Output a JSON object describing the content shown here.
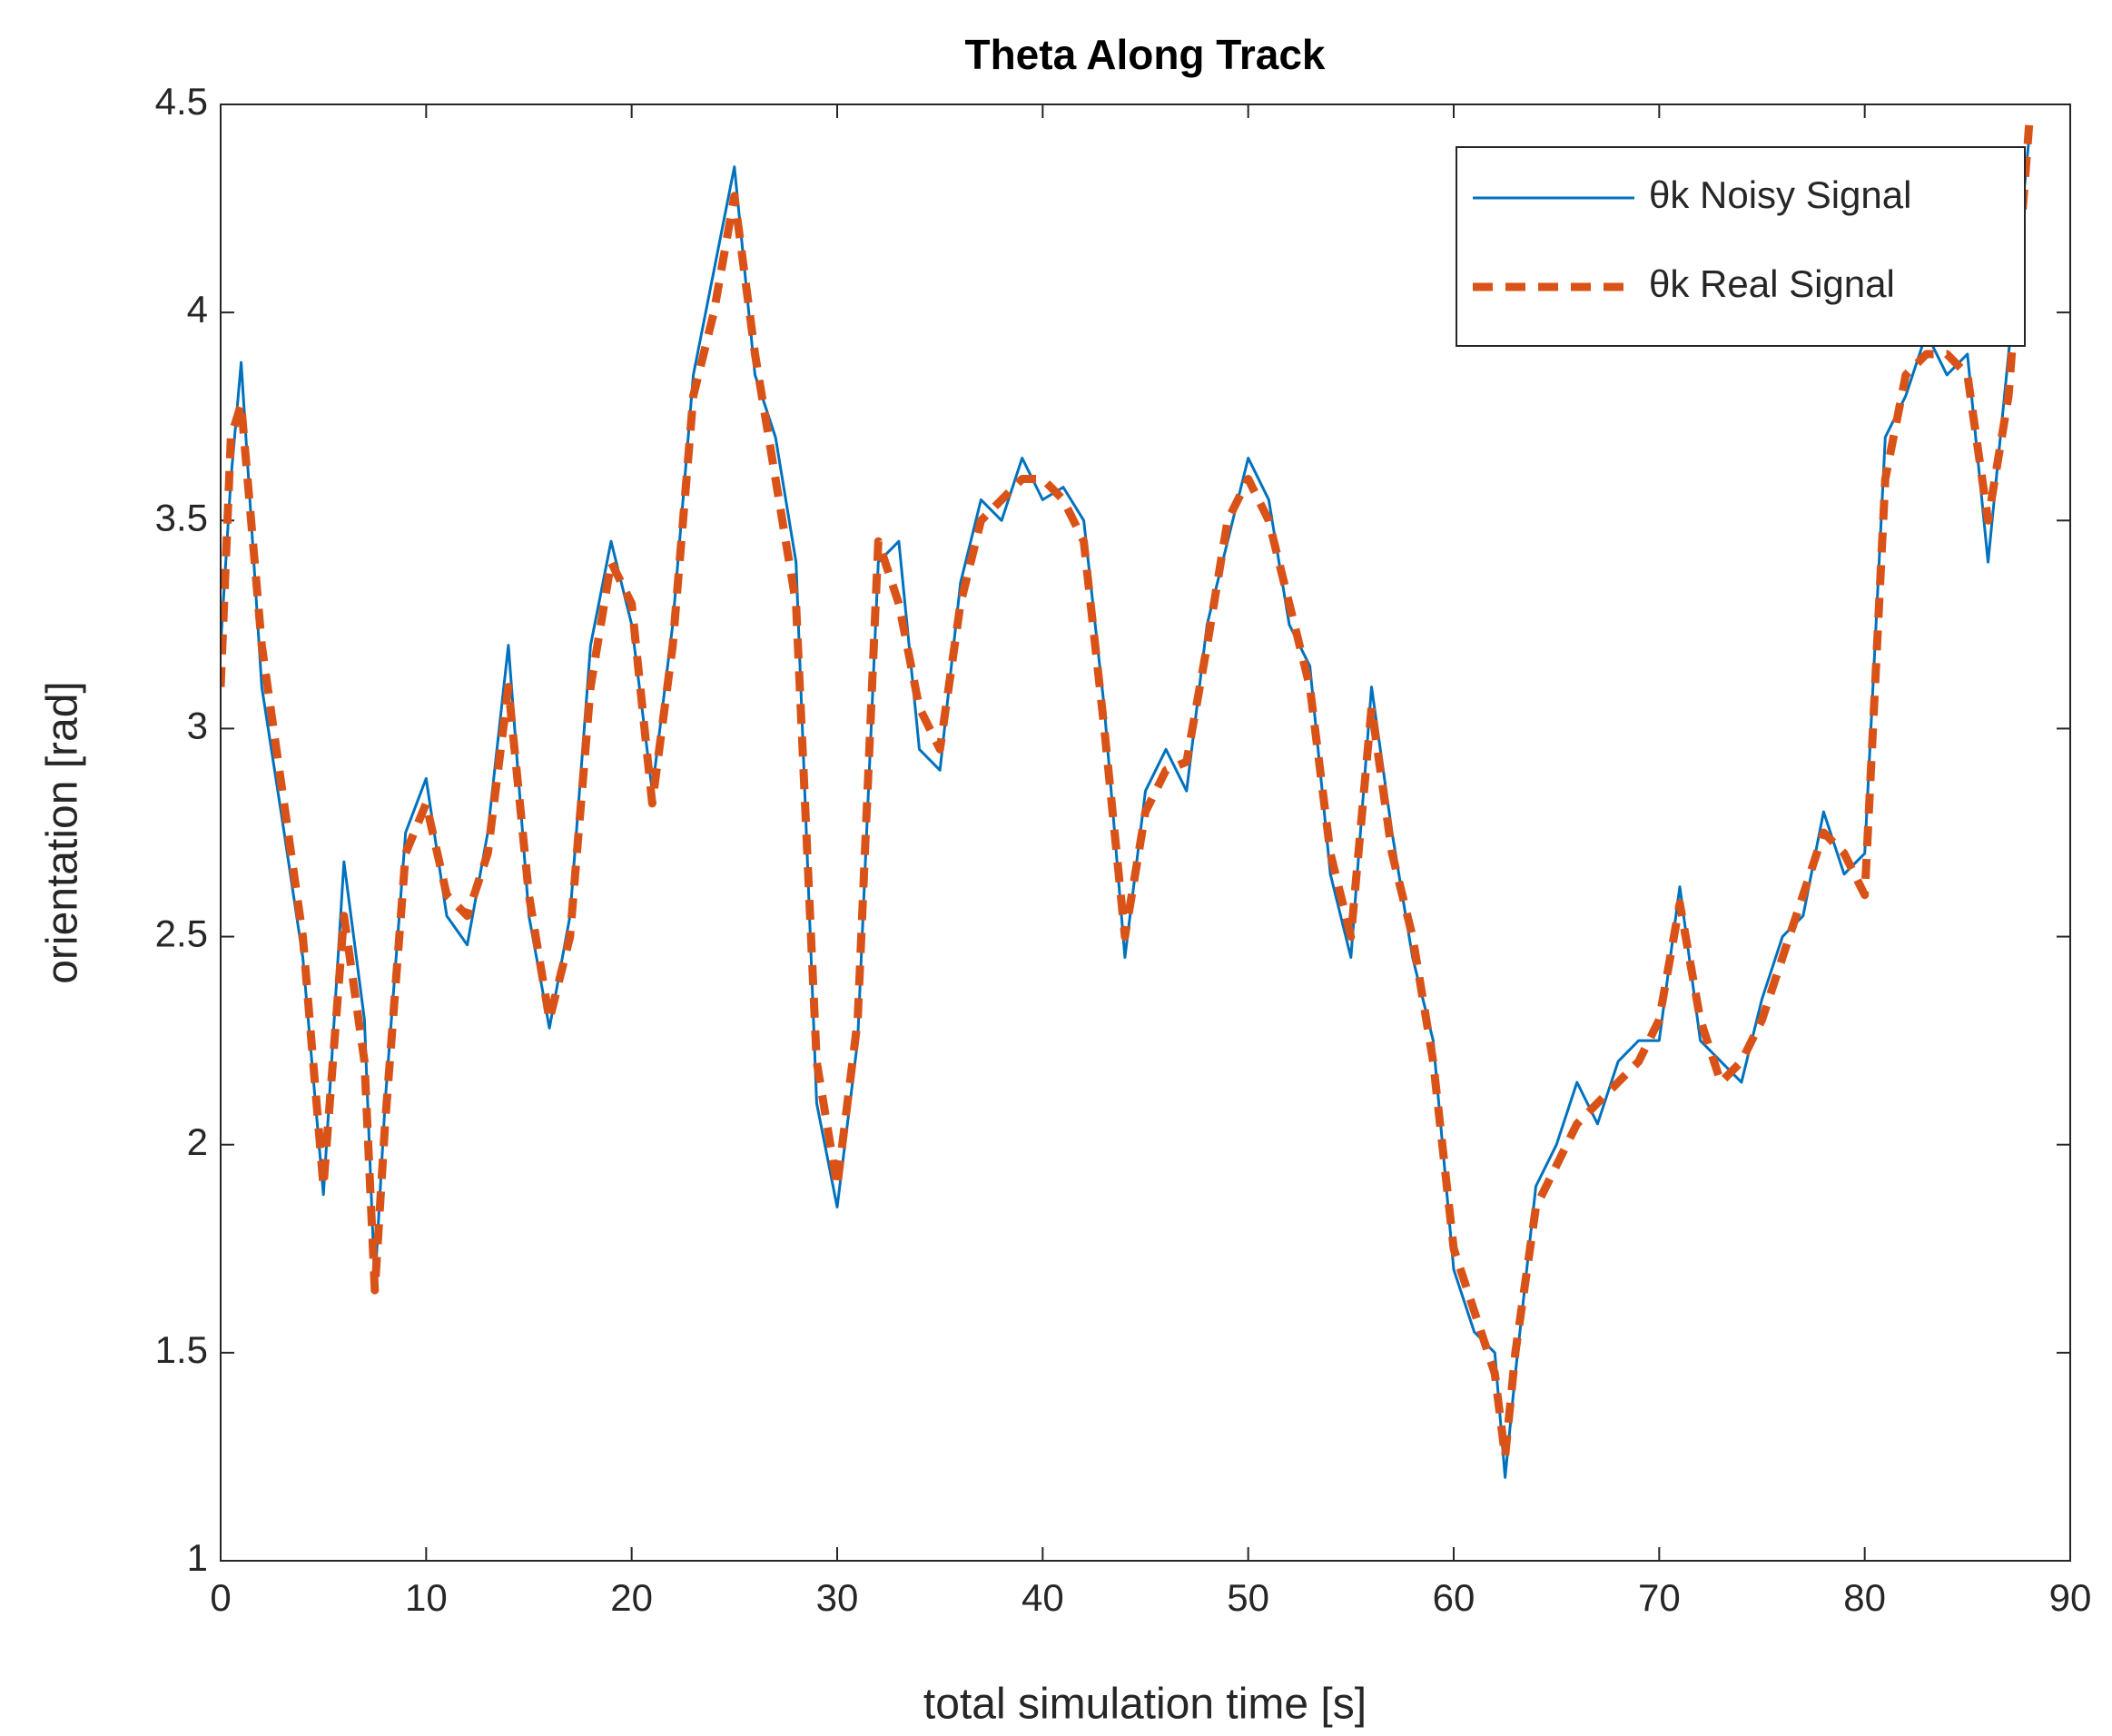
{
  "chart_data": {
    "type": "line",
    "title": "Theta Along Track",
    "x_label": "total simulation time [s]",
    "y_label": "orientation [rad]",
    "x": [
      0,
      0.5,
      1,
      2,
      3,
      4,
      5,
      6,
      7,
      7.5,
      8,
      9,
      10,
      11,
      12,
      13,
      14,
      15,
      16,
      17,
      18,
      19,
      20,
      21,
      22,
      23,
      24,
      25,
      26,
      27,
      28,
      29,
      30,
      31,
      32,
      33,
      34,
      35,
      36,
      37,
      38,
      39,
      40,
      41,
      42,
      43,
      44,
      45,
      46,
      47,
      48,
      49,
      50,
      51,
      52,
      53,
      54,
      55,
      56,
      57,
      58,
      59,
      60,
      61,
      62,
      62.5,
      63,
      64,
      65,
      66,
      67,
      68,
      69,
      70,
      71,
      72,
      73,
      74,
      75,
      76,
      77,
      78,
      79,
      80,
      81,
      82,
      83,
      84,
      85,
      86,
      87,
      88
    ],
    "series": [
      {
        "name": "θk Noisy Signal",
        "color": "#0072BD",
        "linestyle": "solid",
        "values": [
          3.2,
          3.6,
          3.88,
          3.1,
          2.78,
          2.45,
          1.88,
          2.68,
          2.3,
          1.66,
          2.1,
          2.75,
          2.88,
          2.55,
          2.48,
          2.75,
          3.2,
          2.55,
          2.28,
          2.55,
          3.2,
          3.45,
          3.25,
          2.85,
          3.25,
          3.85,
          4.1,
          4.35,
          3.85,
          3.7,
          3.4,
          2.1,
          1.85,
          2.25,
          3.4,
          3.45,
          2.95,
          2.9,
          3.35,
          3.55,
          3.5,
          3.65,
          3.55,
          3.58,
          3.5,
          3.05,
          2.45,
          2.85,
          2.95,
          2.85,
          3.25,
          3.45,
          3.65,
          3.55,
          3.25,
          3.15,
          2.65,
          2.45,
          3.1,
          2.75,
          2.45,
          2.25,
          1.7,
          1.55,
          1.5,
          1.2,
          1.45,
          1.9,
          2.0,
          2.15,
          2.05,
          2.2,
          2.25,
          2.25,
          2.62,
          2.25,
          2.2,
          2.15,
          2.35,
          2.5,
          2.55,
          2.8,
          2.65,
          2.7,
          3.7,
          3.8,
          3.95,
          3.85,
          3.9,
          3.4,
          3.9,
          4.42
        ]
      },
      {
        "name": "θk Real Signal",
        "color": "#D95319",
        "linestyle": "dashed",
        "values": [
          3.1,
          3.7,
          3.78,
          3.2,
          2.85,
          2.5,
          1.9,
          2.55,
          2.2,
          1.65,
          2.05,
          2.7,
          2.82,
          2.6,
          2.55,
          2.7,
          3.1,
          2.6,
          2.3,
          2.5,
          3.1,
          3.4,
          3.3,
          2.82,
          3.2,
          3.8,
          4.0,
          4.28,
          3.9,
          3.6,
          3.3,
          2.2,
          1.9,
          2.3,
          3.45,
          3.3,
          3.05,
          2.95,
          3.3,
          3.5,
          3.55,
          3.6,
          3.6,
          3.55,
          3.45,
          3.0,
          2.5,
          2.8,
          2.9,
          2.92,
          3.2,
          3.5,
          3.6,
          3.5,
          3.3,
          3.1,
          2.7,
          2.5,
          3.05,
          2.7,
          2.5,
          2.2,
          1.75,
          1.6,
          1.45,
          1.25,
          1.5,
          1.85,
          1.95,
          2.05,
          2.1,
          2.15,
          2.2,
          2.3,
          2.58,
          2.3,
          2.15,
          2.2,
          2.3,
          2.45,
          2.6,
          2.75,
          2.7,
          2.6,
          3.6,
          3.85,
          3.9,
          3.9,
          3.85,
          3.5,
          3.8,
          4.45
        ]
      }
    ],
    "xlim": [
      0,
      90
    ],
    "xticks": [
      0,
      10,
      20,
      30,
      40,
      50,
      60,
      70,
      80,
      90
    ],
    "ylim": [
      1,
      4.5
    ],
    "yticks": [
      1,
      1.5,
      2,
      2.5,
      3,
      3.5,
      4,
      4.5
    ],
    "legend": "upper right"
  }
}
